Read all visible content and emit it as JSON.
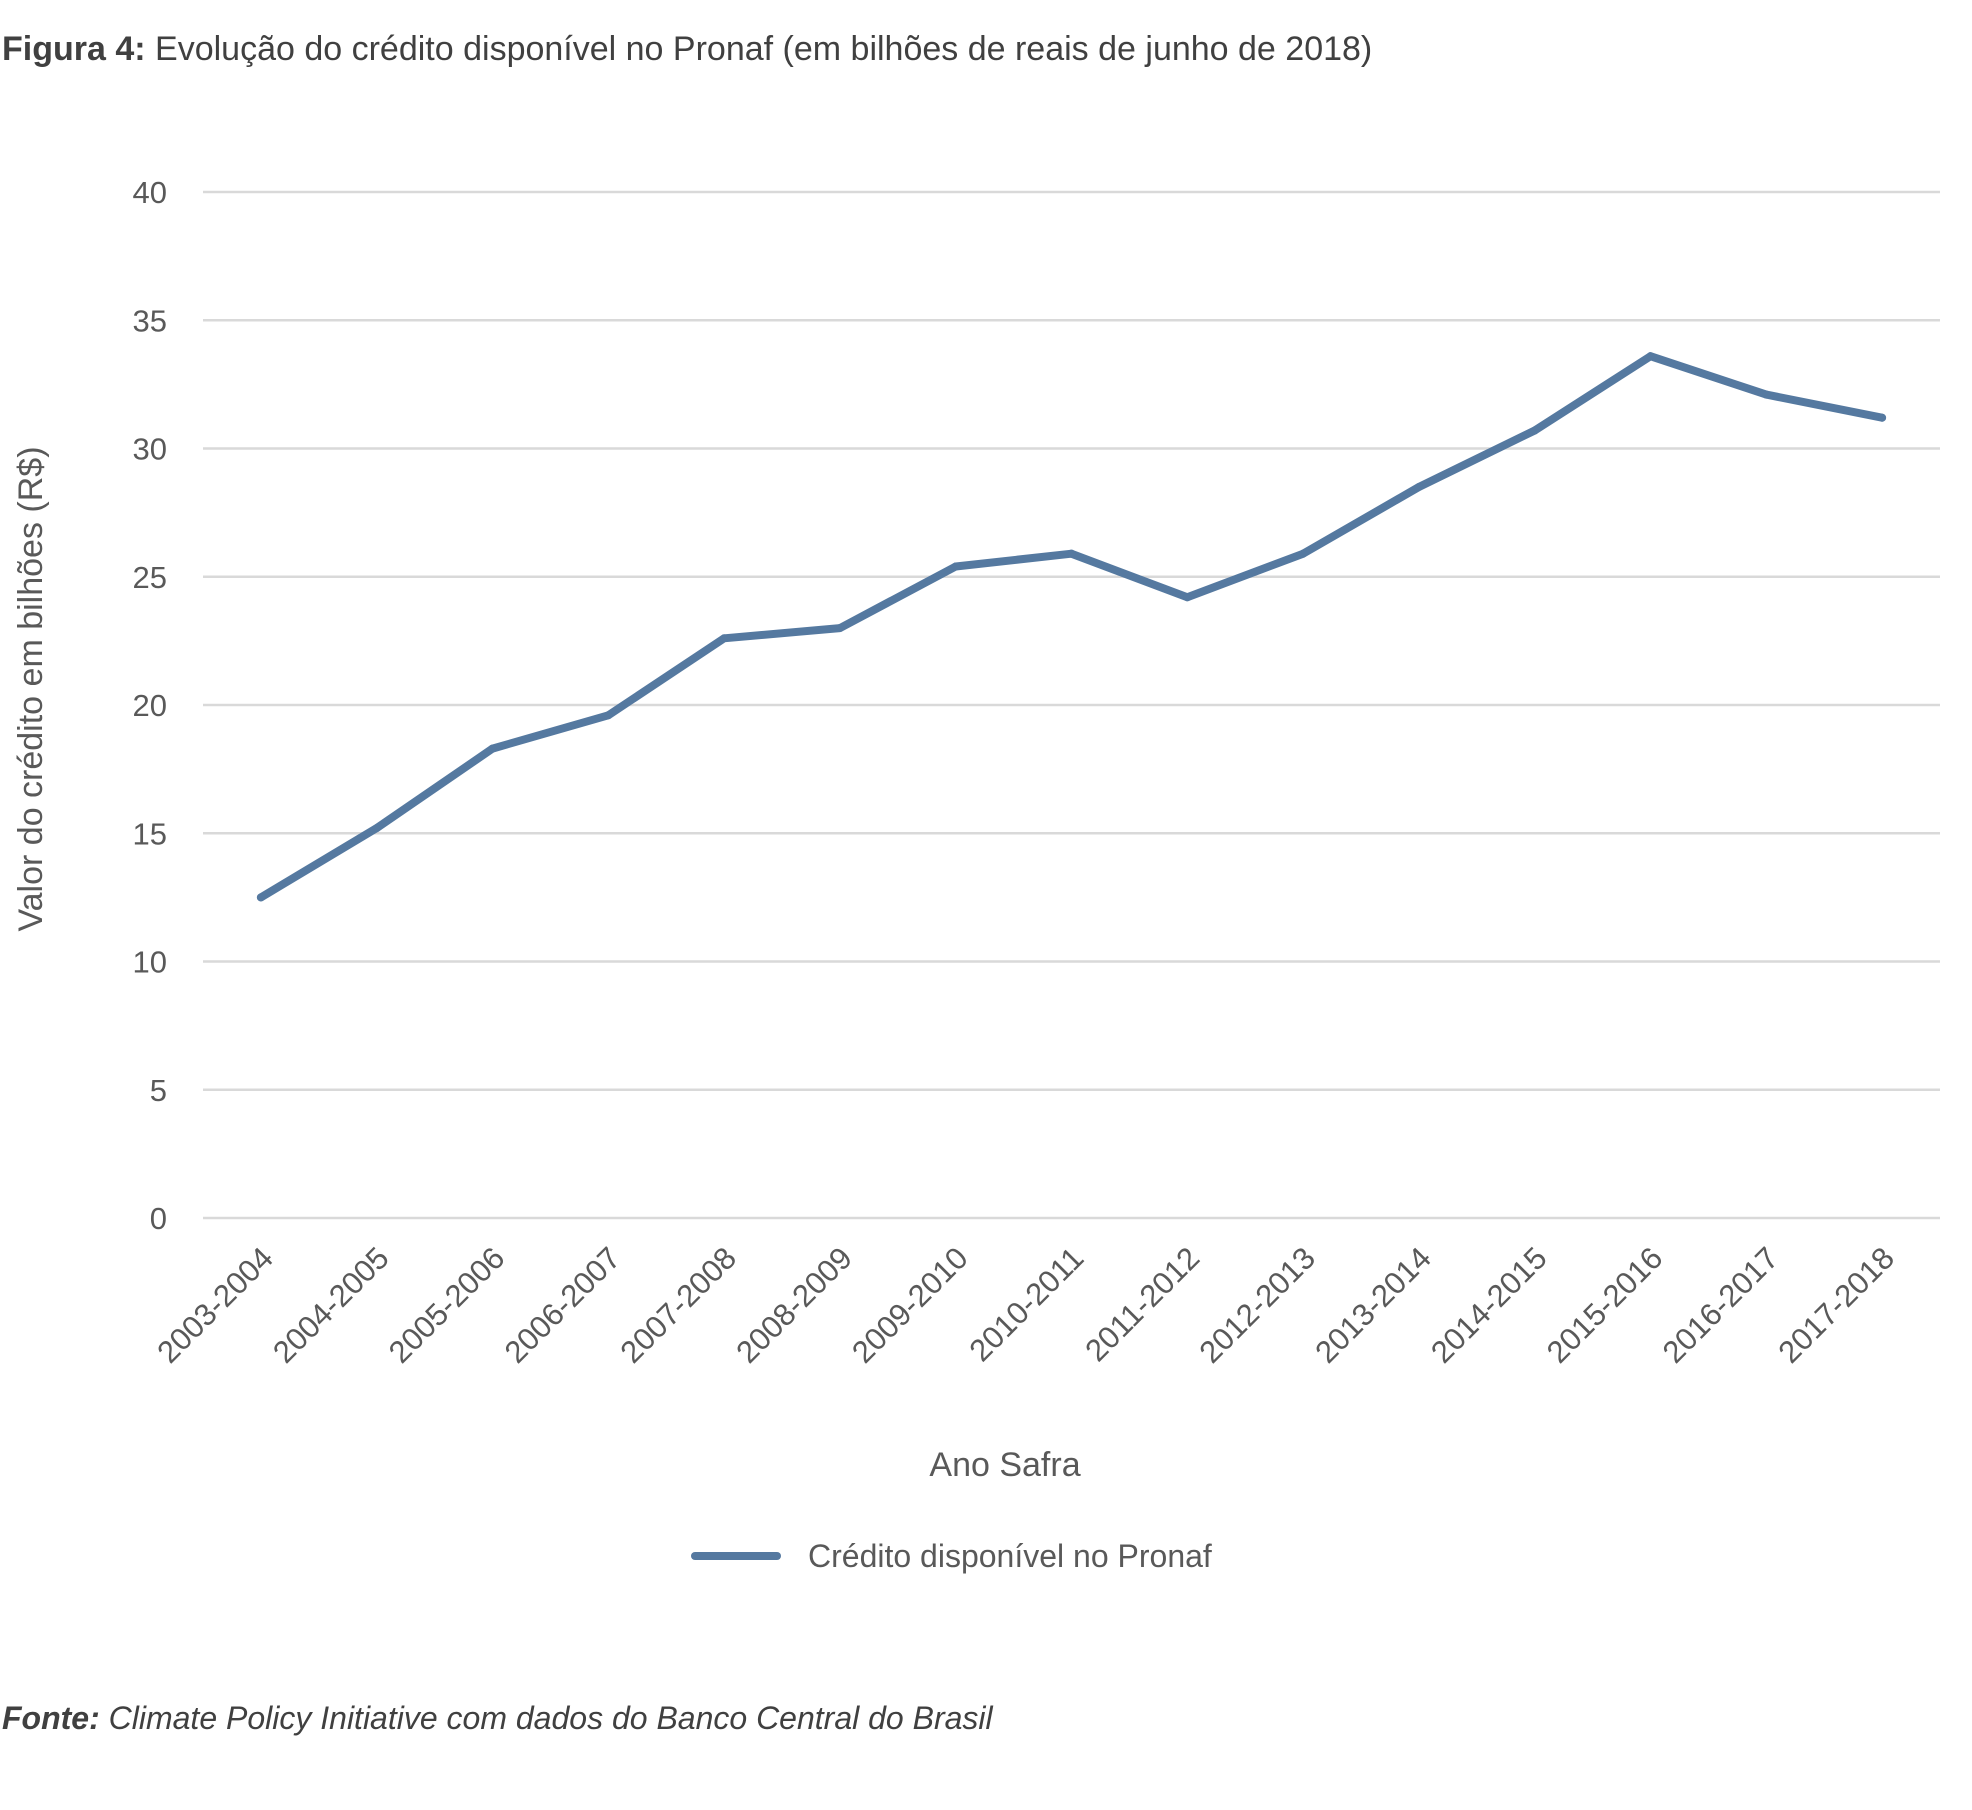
{
  "caption": {
    "label": "Figura 4:",
    "text": " Evolução do crédito disponível no Pronaf (em bilhões de reais de junho de 2018)"
  },
  "source": {
    "label": "Fonte:",
    "text": " Climate Policy Initiative com dados do Banco Central do Brasil"
  },
  "colors": {
    "series": "#5579A0",
    "grid": "#D9D9D9",
    "text": "#595959"
  },
  "chart_data": {
    "type": "line",
    "title": "",
    "xlabel": "Ano Safra",
    "ylabel": "Valor do crédito em bilhões (R$)",
    "ylim": [
      0,
      40
    ],
    "yticks": [
      0,
      5,
      10,
      15,
      20,
      25,
      30,
      35,
      40
    ],
    "grid": true,
    "legend_position": "bottom",
    "categories": [
      "2003-2004",
      "2004-2005",
      "2005-2006",
      "2006-2007",
      "2007-2008",
      "2008-2009",
      "2009-2010",
      "2010-2011",
      "2011-2012",
      "2012-2013",
      "2013-2014",
      "2014-2015",
      "2015-2016",
      "2016-2017",
      "2017-2018"
    ],
    "series": [
      {
        "name": "Crédito disponível no Pronaf",
        "values": [
          12.5,
          15.2,
          18.3,
          19.6,
          22.6,
          23.0,
          25.4,
          25.9,
          24.2,
          25.9,
          28.5,
          30.7,
          33.6,
          32.1,
          31.2
        ]
      }
    ]
  }
}
